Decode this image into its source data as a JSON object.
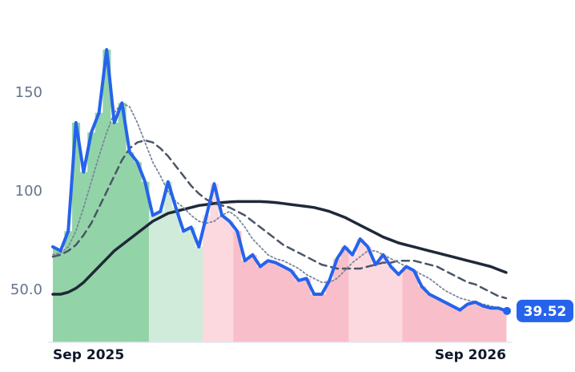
{
  "chart_data": {
    "type": "line",
    "categories": [
      "Sep 2025",
      null,
      null,
      null,
      null,
      null,
      null,
      null,
      null,
      null,
      null,
      null,
      null,
      null,
      null,
      null,
      null,
      null,
      null,
      null,
      null,
      null,
      null,
      null,
      null,
      null,
      null,
      null,
      null,
      null,
      null,
      null,
      null,
      null,
      null,
      null,
      null,
      null,
      null,
      null,
      null,
      null,
      null,
      null,
      null,
      null,
      null,
      null,
      null,
      null,
      null,
      null,
      null,
      null,
      null,
      null,
      null,
      null,
      null,
      "Sep 2026"
    ],
    "series": [
      {
        "color": "#2563eb",
        "style": "solid",
        "width": 4,
        "values": [
          72,
          70,
          80,
          135,
          110,
          130,
          140,
          172,
          135,
          145,
          120,
          115,
          105,
          88,
          90,
          105,
          92,
          80,
          82,
          72,
          88,
          104,
          88,
          85,
          80,
          65,
          68,
          62,
          65,
          64,
          62,
          60,
          55,
          56,
          48,
          48,
          55,
          66,
          72,
          68,
          76,
          72,
          63,
          68,
          62,
          58,
          62,
          60,
          52,
          48,
          46,
          44,
          42,
          40,
          43,
          44,
          42,
          41,
          41,
          39.52
        ],
        "fill_colors": [
          "#93d3a8",
          "#93d3a8",
          "#93d3a8",
          "#93d3a8",
          "#93d3a8",
          "#93d3a8",
          "#93d3a8",
          "#93d3a8",
          "#93d3a8",
          "#93d3a8",
          "#93d3a8",
          "#93d3a8",
          "#93d3a8",
          "#d0ebda",
          "#d0ebda",
          "#d0ebda",
          "#d0ebda",
          "#d0ebda",
          "#d0ebda",
          "#d0ebda",
          "#fcd9df",
          "#fcd9df",
          "#fcd9df",
          "#fcd9df",
          "#f8bfca",
          "#f8bfca",
          "#f8bfca",
          "#f8bfca",
          "#f8bfca",
          "#f8bfca",
          "#f8bfca",
          "#f8bfca",
          "#f8bfca",
          "#f8bfca",
          "#f8bfca",
          "#f8bfca",
          "#f8bfca",
          "#f8bfca",
          "#f8bfca",
          "#fcd9df",
          "#fcd9df",
          "#fcd9df",
          "#fcd9df",
          "#fcd9df",
          "#fcd9df",
          "#fcd9df",
          "#f8bfca",
          "#f8bfca",
          "#f8bfca",
          "#f8bfca",
          "#f8bfca",
          "#f8bfca",
          "#f8bfca",
          "#f8bfca",
          "#f8bfca",
          "#f8bfca",
          "#f8bfca",
          "#f8bfca",
          "#f8bfca",
          "#f8bfca"
        ]
      },
      {
        "color": "#7a8699",
        "style": "dotted",
        "width": 1.8,
        "values": [
          68,
          69,
          72,
          80,
          92,
          105,
          118,
          130,
          140,
          145,
          143,
          135,
          125,
          115,
          108,
          100,
          95,
          92,
          88,
          85,
          84,
          85,
          88,
          90,
          87,
          82,
          76,
          72,
          68,
          66,
          65,
          63,
          61,
          58,
          56,
          54,
          54,
          56,
          60,
          64,
          67,
          70,
          70,
          68,
          66,
          64,
          62,
          60,
          58,
          56,
          53,
          50,
          48,
          46,
          45,
          44,
          43,
          42,
          41,
          40
        ]
      },
      {
        "color": "#4b5567",
        "style": "dashed",
        "width": 2.5,
        "values": [
          67,
          68,
          70,
          73,
          78,
          84,
          92,
          100,
          108,
          116,
          122,
          125,
          126,
          125,
          122,
          118,
          113,
          108,
          103,
          99,
          96,
          94,
          93,
          92,
          90,
          88,
          85,
          82,
          79,
          76,
          73,
          71,
          69,
          67,
          65,
          63,
          62,
          61,
          61,
          61,
          61,
          62,
          63,
          64,
          64,
          65,
          65,
          65,
          64,
          63,
          62,
          60,
          58,
          56,
          54,
          53,
          51,
          49,
          47,
          46
        ]
      },
      {
        "color": "#1f2937",
        "style": "solid",
        "width": 3.5,
        "values": [
          48,
          48,
          49,
          51,
          54,
          58,
          62,
          66,
          70,
          73,
          76,
          79,
          82,
          85,
          87,
          89,
          90,
          91,
          92,
          93,
          93.5,
          94,
          94.5,
          94.8,
          95,
          95,
          95,
          95,
          94.8,
          94.5,
          94,
          93.5,
          93,
          92.5,
          92,
          91,
          90,
          88.5,
          87,
          85,
          83,
          81,
          79,
          77,
          75.5,
          74,
          73,
          72,
          71,
          70,
          69,
          68,
          67,
          66,
          65,
          64,
          63,
          62,
          60.5,
          59
        ]
      }
    ],
    "ylim": [
      23.6,
      185
    ],
    "yticks": [
      {
        "value": 50,
        "label": "50.0"
      },
      100,
      150
    ],
    "grid": false
  }
}
